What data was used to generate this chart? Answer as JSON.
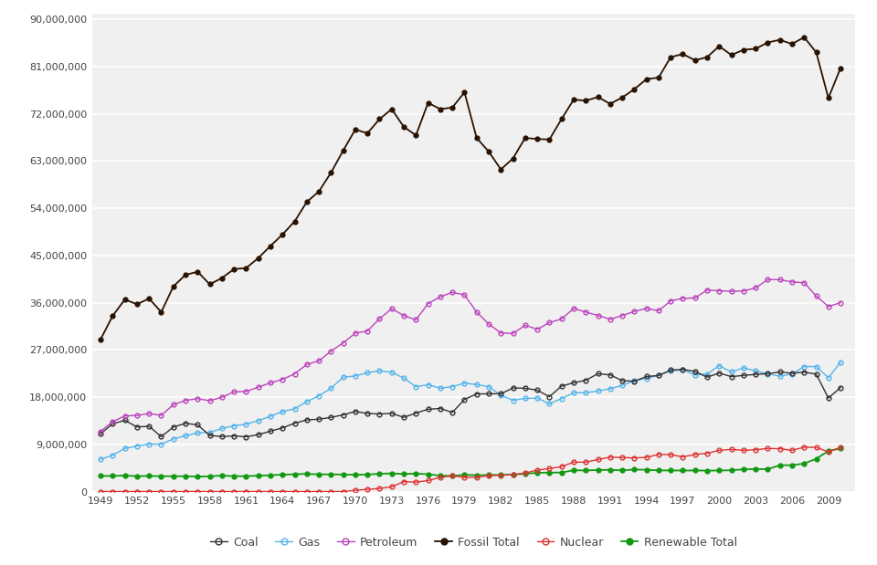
{
  "years": [
    1949,
    1950,
    1951,
    1952,
    1953,
    1954,
    1955,
    1956,
    1957,
    1958,
    1959,
    1960,
    1961,
    1962,
    1963,
    1964,
    1965,
    1966,
    1967,
    1968,
    1969,
    1970,
    1971,
    1972,
    1973,
    1974,
    1975,
    1976,
    1977,
    1978,
    1979,
    1980,
    1981,
    1982,
    1983,
    1984,
    1985,
    1986,
    1987,
    1988,
    1989,
    1990,
    1991,
    1992,
    1993,
    1994,
    1995,
    1996,
    1997,
    1998,
    1999,
    2000,
    2001,
    2002,
    2003,
    2004,
    2005,
    2006,
    2007,
    2008,
    2009,
    2010
  ],
  "coal": [
    11029000,
    12913000,
    13579000,
    12310000,
    12447000,
    10453000,
    12295000,
    13005000,
    12714000,
    10688000,
    10492000,
    10601000,
    10441000,
    10839000,
    11516000,
    12140000,
    13024000,
    13658000,
    13791000,
    14138000,
    14615000,
    15266000,
    14891000,
    14782000,
    14892000,
    14148000,
    14963000,
    15689000,
    15834000,
    15088000,
    17555000,
    18609000,
    18632000,
    18641000,
    19738000,
    19691000,
    19320000,
    18083000,
    20101000,
    20731000,
    21212000,
    22461000,
    22242000,
    21141000,
    21018000,
    21940000,
    22103000,
    23153000,
    23282000,
    22889000,
    21804000,
    22580000,
    21901000,
    22142000,
    22320000,
    22463000,
    22797000,
    22543000,
    22767000,
    22373000,
    17817000,
    19813000
  ],
  "gas": [
    6149000,
    6927000,
    8238000,
    8673000,
    9031000,
    9036000,
    10026000,
    10639000,
    11186000,
    11266000,
    12038000,
    12516000,
    12866000,
    13520000,
    14355000,
    15249000,
    15770000,
    17143000,
    18234000,
    19696000,
    21790000,
    22034000,
    22648000,
    23012000,
    22746000,
    21612000,
    19988000,
    20357000,
    19699000,
    20000000,
    20666000,
    20394000,
    19980000,
    18372000,
    17399000,
    17751000,
    17834000,
    16710000,
    17725000,
    18843000,
    18832000,
    19176000,
    19594000,
    20228000,
    21135000,
    21546000,
    22171000,
    23009000,
    23202000,
    22243000,
    22400000,
    23982000,
    22801000,
    23579000,
    23012000,
    22429000,
    22000000,
    22415000,
    23829000,
    23827000,
    21693000,
    24644000
  ],
  "petroleum": [
    11480000,
    13319000,
    14411000,
    14501000,
    14873000,
    14529000,
    16542000,
    17372000,
    17705000,
    17306000,
    17984000,
    19011000,
    19075000,
    19892000,
    20715000,
    21391000,
    22440000,
    24228000,
    24912000,
    26769000,
    28341000,
    30190000,
    30597000,
    32949000,
    34843000,
    33545000,
    32730000,
    35824000,
    37122000,
    37963000,
    37479000,
    34230000,
    31930000,
    30232000,
    30124000,
    31700000,
    30924000,
    32199000,
    32889000,
    34896000,
    34210000,
    33553000,
    32844000,
    33551000,
    34336000,
    34890000,
    34459000,
    36346000,
    36831000,
    36893000,
    38416000,
    38264000,
    38181000,
    38232000,
    38825000,
    40389000,
    40397000,
    39951000,
    39820000,
    37274000,
    35259000,
    36005000
  ],
  "fossil_total": [
    29000000,
    33500000,
    36600000,
    35700000,
    36800000,
    34200000,
    39100000,
    41300000,
    41900000,
    39500000,
    40700000,
    42400000,
    42600000,
    44500000,
    46800000,
    49000000,
    51500000,
    55200000,
    57200000,
    60800000,
    65000000,
    69000000,
    68300000,
    71000000,
    72900000,
    69500000,
    67900000,
    74100000,
    72900000,
    73200000,
    76100000,
    67400000,
    64800000,
    61400000,
    63500000,
    67400000,
    67200000,
    67100000,
    71000000,
    74700000,
    74500000,
    75200000,
    73900000,
    75100000,
    76700000,
    78600000,
    78900000,
    82800000,
    83400000,
    82200000,
    82800000,
    84900000,
    83200000,
    84200000,
    84400000,
    85600000,
    86100000,
    85300000,
    86600000,
    83700000,
    75000000,
    80700000
  ],
  "nuclear": [
    0,
    0,
    0,
    0,
    0,
    0,
    0,
    0,
    0,
    0,
    0,
    0,
    0,
    0,
    0,
    0,
    0,
    0,
    0,
    0,
    0,
    239000,
    414000,
    584000,
    910000,
    1900000,
    1800000,
    2100000,
    2700000,
    3000000,
    2700000,
    2740000,
    3006000,
    3131000,
    3203000,
    3553000,
    4076000,
    4380000,
    4754000,
    5603000,
    5602000,
    6104000,
    6553000,
    6479000,
    6411000,
    6510000,
    7075000,
    7034000,
    6607000,
    7068000,
    7286000,
    7862000,
    8029000,
    7868000,
    7959000,
    8222000,
    8160000,
    7859000,
    8456000,
    8427000,
    7561000,
    8434000
  ],
  "renewable": [
    2972000,
    2980000,
    3047000,
    2937000,
    2967000,
    2931000,
    2919000,
    2924000,
    2841000,
    2901000,
    3057000,
    2929000,
    2938000,
    3025000,
    3112000,
    3229000,
    3289000,
    3383000,
    3270000,
    3280000,
    3247000,
    3200000,
    3248000,
    3395000,
    3465000,
    3359000,
    3417000,
    3303000,
    3023000,
    2997000,
    3185000,
    3119000,
    3148000,
    3196000,
    3219000,
    3392000,
    3570000,
    3624000,
    3624000,
    4067000,
    4010000,
    4105000,
    4141000,
    4047000,
    4200000,
    4149000,
    4026000,
    4023000,
    4007000,
    4017000,
    3992000,
    4011000,
    4056000,
    4233000,
    4282000,
    4266000,
    5024000,
    5016000,
    5344000,
    6246000,
    7744000,
    8193000
  ],
  "colors": {
    "coal": "#333333",
    "gas": "#56b4e9",
    "petroleum": "#bb44bb",
    "fossil_total": "#2a1200",
    "nuclear": "#dd3333",
    "renewable": "#119911"
  },
  "yticks": [
    0,
    9000000,
    18000000,
    27000000,
    36000000,
    45000000,
    54000000,
    63000000,
    72000000,
    81000000,
    90000000
  ],
  "ytick_labels": [
    "0",
    "9,000,000",
    "18,000,000",
    "27,000,000",
    "36,000,000",
    "45,000,000",
    "54,000,000",
    "63,000,000",
    "72,000,000",
    "81,000,000",
    "90,000,000"
  ],
  "xtick_years": [
    1949,
    1952,
    1955,
    1958,
    1961,
    1964,
    1967,
    1970,
    1973,
    1976,
    1979,
    1982,
    1985,
    1988,
    1991,
    1994,
    1997,
    2000,
    2003,
    2006,
    2009
  ],
  "bg_color": "#f0f0f0",
  "grid_color": "#ffffff",
  "fig_bg": "#ffffff"
}
